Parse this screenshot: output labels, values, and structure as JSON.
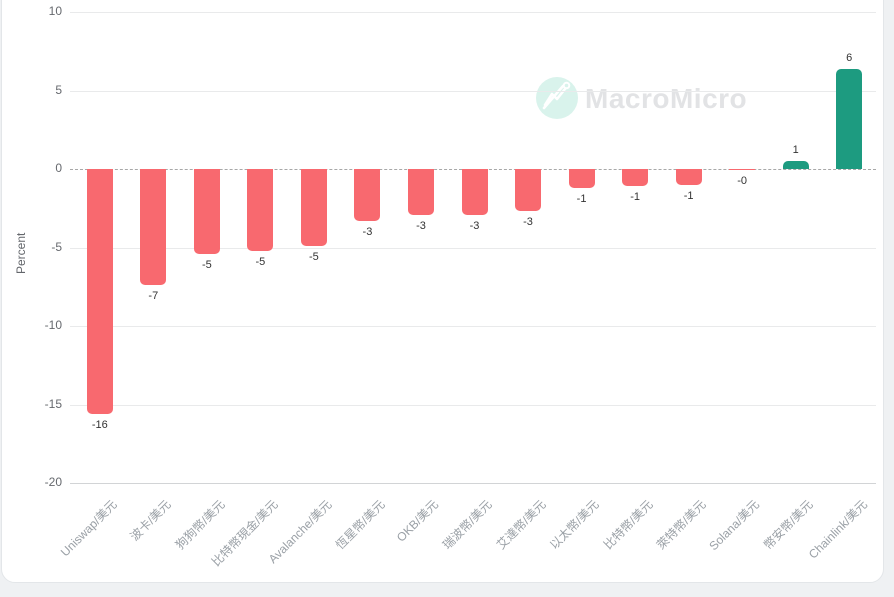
{
  "watermark": {
    "text": "MacroMicro",
    "icon": "macromicro-logo-icon",
    "circle_color": "#d9f3ec",
    "text_color": "#e2e3e5"
  },
  "chart_data": {
    "type": "bar",
    "title": "",
    "xlabel": "",
    "ylabel": "Percent",
    "ylim": [
      -20,
      10
    ],
    "yticks": [
      10,
      5,
      0,
      -5,
      -10,
      -15,
      -20
    ],
    "grid": true,
    "zero_line_style": "dashed",
    "legend": "none",
    "categories": [
      "Uniswap/美元",
      "波卡/美元",
      "狗狗幣/美元",
      "比特幣現金/美元",
      "Avalanche/美元",
      "恆星幣/美元",
      "OKB/美元",
      "瑞波幣/美元",
      "艾達幣/美元",
      "以太幣/美元",
      "比特幣/美元",
      "萊特幣/美元",
      "Solana/美元",
      "幣安幣/美元",
      "Chainlink/美元"
    ],
    "values": [
      -15.6,
      -7.4,
      -5.4,
      -5.2,
      -4.9,
      -3.3,
      -2.9,
      -2.9,
      -2.7,
      -1.2,
      -1.1,
      -1.0,
      -0.05,
      0.5,
      6.4
    ],
    "bar_labels": [
      "-16",
      "-7",
      "-5",
      "-5",
      "-5",
      "-3",
      "-3",
      "-3",
      "-3",
      "-1",
      "-1",
      "-1",
      "-0",
      "1",
      "6"
    ],
    "colors": {
      "negative": "#f8696f",
      "positive": "#1d9b80",
      "bar_label": "#333333",
      "axis_tick": "#66696e",
      "category_label": "#9aa0a6"
    }
  }
}
